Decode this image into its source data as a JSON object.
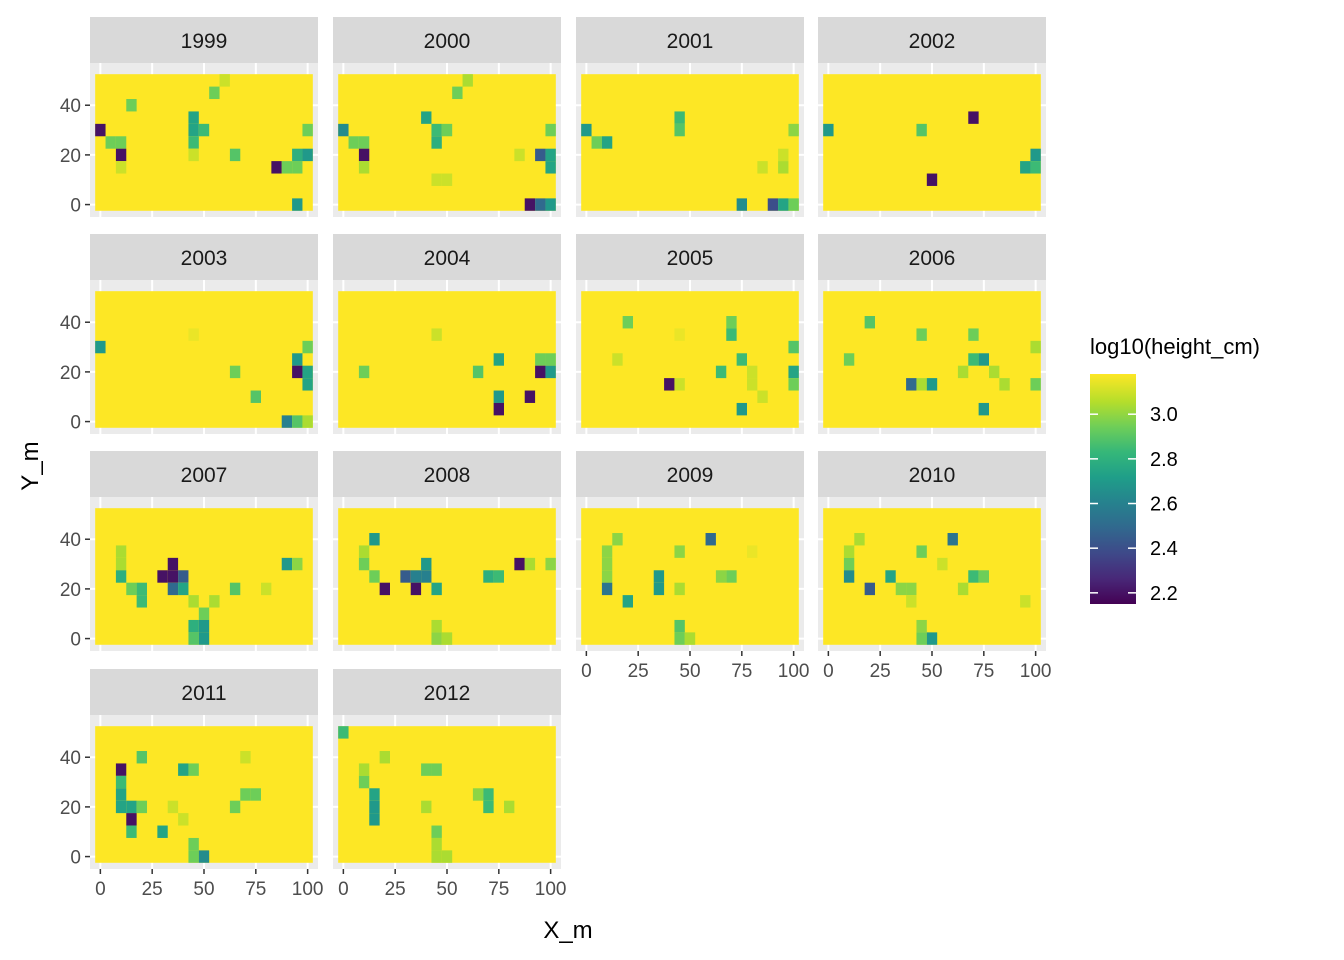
{
  "chart_data": {
    "type": "heatmap",
    "facet_variable": "year",
    "panels": [
      {
        "label": "1999",
        "cells": [
          [
            0,
            30,
            2.2
          ],
          [
            5,
            25,
            2.95
          ],
          [
            10,
            25,
            2.95
          ],
          [
            10,
            20,
            2.2
          ],
          [
            10,
            15,
            3.1
          ],
          [
            15,
            40,
            2.95
          ],
          [
            45,
            35,
            2.75
          ],
          [
            45,
            30,
            2.75
          ],
          [
            45,
            25,
            2.85
          ],
          [
            50,
            30,
            2.85
          ],
          [
            45,
            20,
            3.1
          ],
          [
            55,
            45,
            2.95
          ],
          [
            60,
            50,
            3.1
          ],
          [
            65,
            20,
            2.9
          ],
          [
            85,
            15,
            2.2
          ],
          [
            90,
            15,
            2.95
          ],
          [
            95,
            15,
            2.95
          ],
          [
            95,
            20,
            2.8
          ],
          [
            100,
            20,
            2.7
          ],
          [
            100,
            30,
            2.95
          ],
          [
            95,
            0,
            2.7
          ]
        ]
      },
      {
        "label": "2000",
        "cells": [
          [
            0,
            30,
            2.65
          ],
          [
            5,
            25,
            2.95
          ],
          [
            10,
            25,
            2.95
          ],
          [
            10,
            20,
            2.2
          ],
          [
            10,
            15,
            3.05
          ],
          [
            40,
            35,
            2.75
          ],
          [
            45,
            30,
            2.85
          ],
          [
            45,
            25,
            2.8
          ],
          [
            50,
            30,
            2.95
          ],
          [
            55,
            45,
            2.95
          ],
          [
            60,
            50,
            3.05
          ],
          [
            45,
            10,
            3.1
          ],
          [
            50,
            10,
            3.1
          ],
          [
            85,
            20,
            3.1
          ],
          [
            95,
            20,
            2.45
          ],
          [
            100,
            20,
            2.75
          ],
          [
            100,
            15,
            2.75
          ],
          [
            100,
            30,
            2.95
          ],
          [
            90,
            0,
            2.2
          ],
          [
            95,
            0,
            2.5
          ],
          [
            100,
            0,
            2.7
          ]
        ]
      },
      {
        "label": "2001",
        "cells": [
          [
            0,
            30,
            2.7
          ],
          [
            5,
            25,
            2.95
          ],
          [
            10,
            25,
            2.75
          ],
          [
            45,
            35,
            2.85
          ],
          [
            45,
            30,
            2.9
          ],
          [
            85,
            15,
            3.1
          ],
          [
            95,
            20,
            3.1
          ],
          [
            95,
            15,
            3.05
          ],
          [
            100,
            30,
            3.0
          ],
          [
            75,
            0,
            2.65
          ],
          [
            90,
            0,
            2.4
          ],
          [
            95,
            0,
            2.75
          ],
          [
            100,
            0,
            2.95
          ]
        ]
      },
      {
        "label": "2002",
        "cells": [
          [
            0,
            30,
            2.7
          ],
          [
            45,
            30,
            2.9
          ],
          [
            70,
            35,
            2.2
          ],
          [
            50,
            10,
            2.2
          ],
          [
            95,
            15,
            2.75
          ],
          [
            100,
            20,
            2.7
          ],
          [
            100,
            15,
            2.85
          ]
        ]
      },
      {
        "label": "2003",
        "cells": [
          [
            0,
            30,
            2.7
          ],
          [
            45,
            35,
            3.15
          ],
          [
            65,
            20,
            2.95
          ],
          [
            75,
            10,
            2.9
          ],
          [
            95,
            25,
            2.7
          ],
          [
            100,
            30,
            2.95
          ],
          [
            95,
            20,
            2.2
          ],
          [
            100,
            20,
            2.75
          ],
          [
            100,
            15,
            2.75
          ],
          [
            90,
            0,
            2.6
          ],
          [
            95,
            0,
            2.9
          ],
          [
            100,
            0,
            3.05
          ]
        ]
      },
      {
        "label": "2004",
        "cells": [
          [
            10,
            20,
            2.95
          ],
          [
            45,
            35,
            3.1
          ],
          [
            65,
            20,
            2.9
          ],
          [
            75,
            25,
            2.75
          ],
          [
            75,
            10,
            2.7
          ],
          [
            75,
            5,
            2.2
          ],
          [
            90,
            10,
            2.2
          ],
          [
            95,
            25,
            2.95
          ],
          [
            100,
            25,
            2.95
          ],
          [
            95,
            20,
            2.2
          ],
          [
            100,
            20,
            2.7
          ]
        ]
      },
      {
        "label": "2005",
        "cells": [
          [
            15,
            25,
            3.1
          ],
          [
            20,
            40,
            2.95
          ],
          [
            45,
            35,
            3.15
          ],
          [
            70,
            40,
            2.95
          ],
          [
            70,
            35,
            2.85
          ],
          [
            75,
            25,
            2.85
          ],
          [
            65,
            20,
            2.85
          ],
          [
            40,
            15,
            2.2
          ],
          [
            45,
            15,
            3.1
          ],
          [
            80,
            20,
            3.1
          ],
          [
            80,
            15,
            3.1
          ],
          [
            85,
            10,
            3.1
          ],
          [
            100,
            30,
            2.9
          ],
          [
            100,
            20,
            2.75
          ],
          [
            100,
            15,
            2.95
          ],
          [
            75,
            5,
            2.7
          ]
        ]
      },
      {
        "label": "2006",
        "cells": [
          [
            10,
            25,
            2.95
          ],
          [
            20,
            40,
            2.9
          ],
          [
            45,
            35,
            2.95
          ],
          [
            70,
            35,
            2.95
          ],
          [
            70,
            25,
            2.85
          ],
          [
            75,
            25,
            2.7
          ],
          [
            65,
            20,
            3.05
          ],
          [
            80,
            20,
            3.05
          ],
          [
            85,
            15,
            3.05
          ],
          [
            40,
            15,
            2.5
          ],
          [
            45,
            15,
            3.05
          ],
          [
            50,
            15,
            2.7
          ],
          [
            100,
            30,
            3.05
          ],
          [
            100,
            15,
            2.95
          ],
          [
            75,
            5,
            2.7
          ]
        ]
      },
      {
        "label": "2007",
        "cells": [
          [
            10,
            35,
            3.05
          ],
          [
            10,
            30,
            3.05
          ],
          [
            10,
            25,
            2.8
          ],
          [
            15,
            20,
            2.95
          ],
          [
            20,
            20,
            2.85
          ],
          [
            20,
            15,
            2.85
          ],
          [
            30,
            25,
            2.2
          ],
          [
            35,
            30,
            2.2
          ],
          [
            35,
            25,
            2.2
          ],
          [
            40,
            25,
            2.45
          ],
          [
            35,
            20,
            2.5
          ],
          [
            40,
            20,
            2.75
          ],
          [
            45,
            15,
            3.05
          ],
          [
            50,
            10,
            2.95
          ],
          [
            55,
            15,
            3.05
          ],
          [
            65,
            20,
            2.9
          ],
          [
            80,
            20,
            3.1
          ],
          [
            90,
            30,
            2.7
          ],
          [
            95,
            30,
            3.0
          ],
          [
            45,
            5,
            2.8
          ],
          [
            45,
            0,
            2.9
          ],
          [
            50,
            5,
            2.7
          ],
          [
            50,
            0,
            2.7
          ]
        ]
      },
      {
        "label": "2008",
        "cells": [
          [
            10,
            35,
            3.05
          ],
          [
            10,
            30,
            2.95
          ],
          [
            15,
            40,
            2.7
          ],
          [
            15,
            25,
            2.95
          ],
          [
            20,
            20,
            2.2
          ],
          [
            30,
            25,
            2.45
          ],
          [
            35,
            25,
            2.6
          ],
          [
            35,
            20,
            2.2
          ],
          [
            40,
            30,
            2.7
          ],
          [
            40,
            25,
            2.6
          ],
          [
            45,
            20,
            2.75
          ],
          [
            70,
            25,
            2.8
          ],
          [
            75,
            25,
            2.85
          ],
          [
            85,
            30,
            2.2
          ],
          [
            90,
            30,
            3.05
          ],
          [
            100,
            30,
            3.0
          ],
          [
            45,
            5,
            3.05
          ],
          [
            45,
            0,
            3.0
          ],
          [
            50,
            0,
            3.05
          ]
        ]
      },
      {
        "label": "2009",
        "cells": [
          [
            10,
            35,
            3.0
          ],
          [
            10,
            30,
            3.0
          ],
          [
            10,
            25,
            3.0
          ],
          [
            10,
            20,
            2.55
          ],
          [
            15,
            40,
            3.0
          ],
          [
            20,
            15,
            2.75
          ],
          [
            35,
            25,
            2.7
          ],
          [
            35,
            20,
            2.7
          ],
          [
            45,
            35,
            3.0
          ],
          [
            45,
            20,
            3.05
          ],
          [
            60,
            40,
            2.5
          ],
          [
            65,
            25,
            3.0
          ],
          [
            70,
            25,
            2.95
          ],
          [
            80,
            35,
            3.15
          ],
          [
            45,
            5,
            2.9
          ],
          [
            45,
            0,
            2.95
          ],
          [
            50,
            0,
            3.05
          ]
        ]
      },
      {
        "label": "2010",
        "cells": [
          [
            10,
            35,
            3.05
          ],
          [
            10,
            30,
            2.95
          ],
          [
            10,
            25,
            2.65
          ],
          [
            15,
            40,
            3.05
          ],
          [
            20,
            20,
            2.45
          ],
          [
            30,
            25,
            2.75
          ],
          [
            35,
            20,
            3.0
          ],
          [
            40,
            20,
            3.0
          ],
          [
            40,
            15,
            3.1
          ],
          [
            45,
            35,
            2.95
          ],
          [
            60,
            40,
            2.55
          ],
          [
            55,
            30,
            3.1
          ],
          [
            65,
            20,
            3.05
          ],
          [
            70,
            25,
            2.85
          ],
          [
            75,
            25,
            2.95
          ],
          [
            95,
            15,
            3.1
          ],
          [
            45,
            5,
            3.0
          ],
          [
            45,
            0,
            2.95
          ],
          [
            50,
            0,
            2.7
          ]
        ]
      },
      {
        "label": "2011",
        "cells": [
          [
            10,
            35,
            2.2
          ],
          [
            10,
            30,
            2.85
          ],
          [
            10,
            25,
            2.75
          ],
          [
            10,
            20,
            2.75
          ],
          [
            15,
            20,
            2.75
          ],
          [
            20,
            20,
            2.95
          ],
          [
            15,
            15,
            2.2
          ],
          [
            15,
            10,
            2.85
          ],
          [
            20,
            40,
            2.9
          ],
          [
            30,
            10,
            2.75
          ],
          [
            35,
            20,
            3.1
          ],
          [
            40,
            35,
            2.75
          ],
          [
            45,
            35,
            2.95
          ],
          [
            40,
            15,
            3.1
          ],
          [
            65,
            20,
            2.95
          ],
          [
            70,
            25,
            2.95
          ],
          [
            75,
            25,
            2.95
          ],
          [
            70,
            40,
            3.1
          ],
          [
            45,
            5,
            2.95
          ],
          [
            45,
            0,
            2.95
          ],
          [
            50,
            0,
            2.65
          ]
        ]
      },
      {
        "label": "2012",
        "cells": [
          [
            0,
            50,
            2.85
          ],
          [
            10,
            35,
            3.05
          ],
          [
            10,
            30,
            2.95
          ],
          [
            15,
            25,
            2.75
          ],
          [
            15,
            20,
            2.7
          ],
          [
            15,
            15,
            2.7
          ],
          [
            20,
            40,
            3.05
          ],
          [
            40,
            35,
            2.95
          ],
          [
            45,
            35,
            2.95
          ],
          [
            40,
            20,
            3.05
          ],
          [
            65,
            25,
            3.0
          ],
          [
            70,
            25,
            2.85
          ],
          [
            70,
            20,
            2.85
          ],
          [
            80,
            20,
            3.05
          ],
          [
            45,
            10,
            2.95
          ],
          [
            45,
            5,
            3.05
          ],
          [
            45,
            0,
            3.05
          ],
          [
            50,
            0,
            3.05
          ]
        ]
      }
    ],
    "cell_size": 5,
    "default_value": 3.18,
    "xlabel": "X_m",
    "ylabel": "Y_m",
    "xticks": [
      0,
      25,
      50,
      75,
      100
    ],
    "yticks": [
      0,
      20,
      40
    ],
    "xlim": [
      -5,
      105
    ],
    "ylim": [
      -5,
      57
    ],
    "legend": {
      "title": "log10(height_cm)",
      "ticks": [
        "2.2",
        "2.4",
        "2.6",
        "2.8",
        "3.0"
      ],
      "tick_values": [
        2.2,
        2.4,
        2.6,
        2.8,
        3.0
      ],
      "range": [
        2.15,
        3.18
      ],
      "position": "right"
    },
    "colors": {
      "panel_background": "#ebebeb",
      "grid": "#ffffff",
      "strip_background": "#d9d9d9",
      "viridis": [
        "#440154",
        "#482878",
        "#3e4989",
        "#31688e",
        "#26828e",
        "#1f9e89",
        "#35b779",
        "#6ece58",
        "#b5de2b",
        "#fde725"
      ]
    }
  }
}
